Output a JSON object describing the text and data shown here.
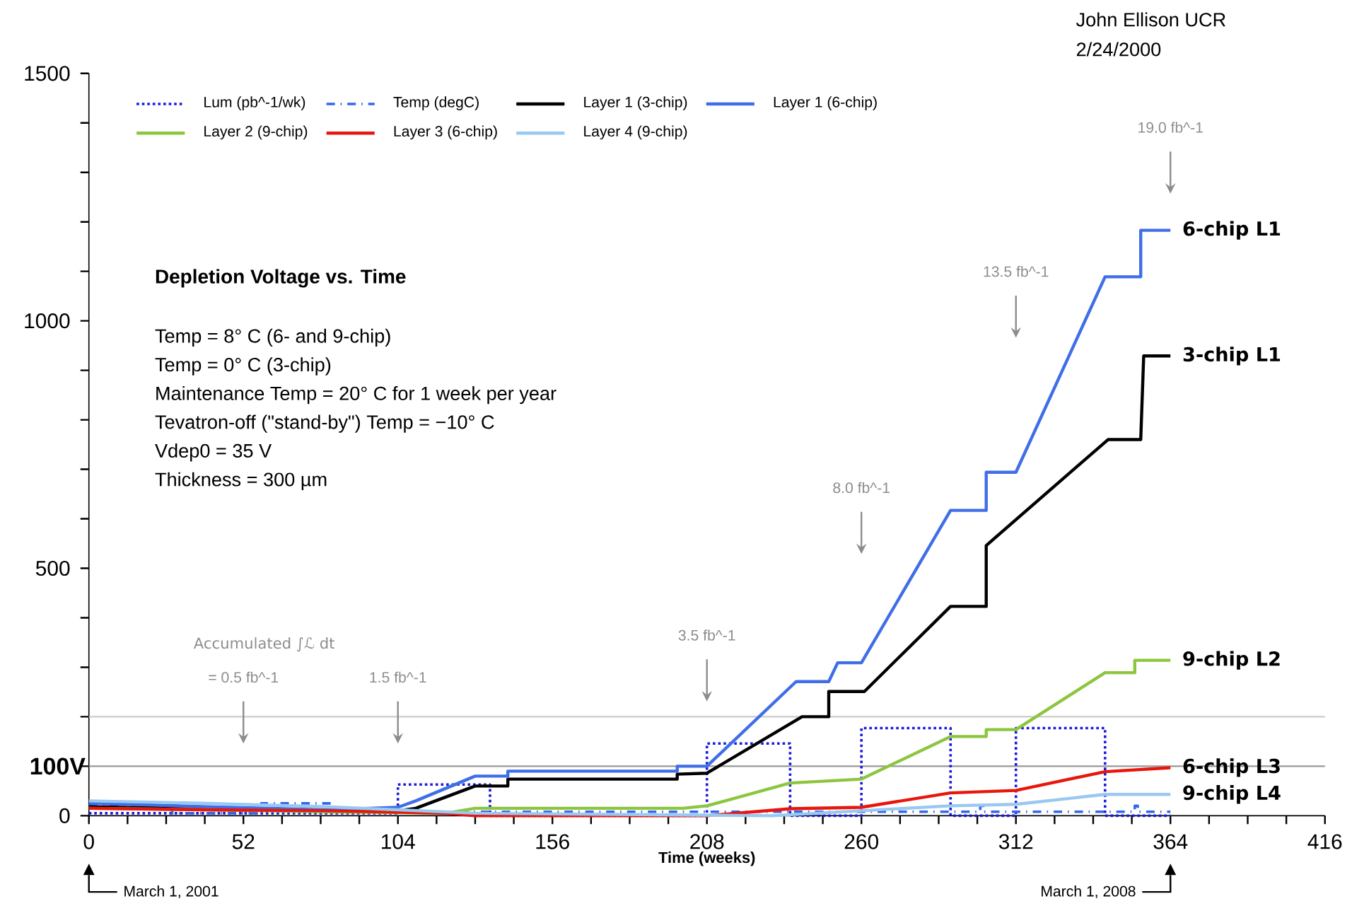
{
  "chart_data": {
    "type": "line",
    "title": "Depletion Voltage vs. Time",
    "xlabel": "Time (weeks)",
    "xlim": [
      0,
      416
    ],
    "xticks": [
      0,
      {
        "value": 13,
        "label": null
      },
      {
        "value": 26,
        "label": null
      },
      {
        "value": 39,
        "label": null
      },
      52,
      {
        "value": 65,
        "label": null
      },
      {
        "value": 78,
        "label": null
      },
      {
        "value": 91,
        "label": null
      },
      104,
      {
        "value": 117,
        "label": null
      },
      {
        "value": 130,
        "label": null
      },
      {
        "value": 143,
        "label": null
      },
      156,
      {
        "value": 169,
        "label": null
      },
      {
        "value": 182,
        "label": null
      },
      {
        "value": 195,
        "label": null
      },
      208,
      {
        "value": 221,
        "label": null
      },
      {
        "value": 234,
        "label": null
      },
      {
        "value": 247,
        "label": null
      },
      260,
      {
        "value": 273,
        "label": null
      },
      {
        "value": 286,
        "label": null
      },
      {
        "value": 299,
        "label": null
      },
      312,
      {
        "value": 325,
        "label": null
      },
      {
        "value": 338,
        "label": null
      },
      {
        "value": 351,
        "label": null
      },
      364,
      {
        "value": 377,
        "label": null
      },
      {
        "value": 390,
        "label": null
      },
      {
        "value": 403,
        "label": null
      },
      416
    ],
    "ylim": [
      0,
      1500
    ],
    "yticks": [
      0,
      {
        "value": 100,
        "label": null
      },
      {
        "value": 200,
        "label": null
      },
      {
        "value": 300,
        "label": null
      },
      {
        "value": 400,
        "label": null
      },
      500,
      {
        "value": 600,
        "label": null
      },
      {
        "value": 700,
        "label": null
      },
      {
        "value": 800,
        "label": null
      },
      {
        "value": 900,
        "label": null
      },
      1000,
      {
        "value": 1100,
        "label": null
      },
      {
        "value": 1200,
        "label": null
      },
      {
        "value": 1300,
        "label": null
      },
      {
        "value": 1400,
        "label": null
      },
      1500
    ],
    "legend": "top",
    "series": [
      {
        "name": "Lum (pb^-1/wk)",
        "color": "#1a1adb",
        "line_style": "dotted",
        "x": [
          0,
          104,
          104,
          135,
          135,
          208,
          208,
          236,
          236,
          260,
          260,
          290,
          290,
          312,
          312,
          342,
          342,
          364
        ],
        "values": [
          5,
          5,
          63,
          63,
          0,
          0,
          146,
          146,
          0,
          0,
          177,
          177,
          0,
          0,
          177,
          177,
          0,
          0
        ]
      },
      {
        "name": "Temp (degC)",
        "color": "#3366ee",
        "line_style": "dashdot",
        "x": [
          0,
          28,
          28,
          58,
          58,
          82,
          82,
          300,
          300,
          301,
          301,
          352,
          352,
          353,
          353,
          364
        ],
        "values": [
          20,
          20,
          5,
          5,
          25,
          25,
          8,
          8,
          20,
          20,
          8,
          8,
          20,
          20,
          8,
          8
        ]
      },
      {
        "name": "Layer 1 (3-chip)",
        "color": "#000000",
        "x": [
          0,
          30,
          60,
          104,
          110,
          130,
          141,
          141,
          198,
          198,
          208,
          240,
          249,
          249,
          261,
          290,
          302,
          302,
          343,
          354,
          355,
          364
        ],
        "values": [
          18,
          15,
          12,
          10,
          15,
          60,
          60,
          74,
          74,
          84,
          86,
          200,
          200,
          251,
          251,
          423,
          423,
          546,
          760,
          760,
          929,
          929
        ]
      },
      {
        "name": "Layer 1 (6-chip)",
        "color": "#3f6ee8",
        "x": [
          0,
          20,
          40,
          60,
          80,
          104,
          110,
          130,
          141,
          141,
          198,
          198,
          208,
          238,
          249,
          252,
          260,
          290,
          302,
          302,
          312,
          342,
          354,
          354,
          364
        ],
        "values": [
          25,
          22,
          18,
          15,
          12,
          17,
          30,
          80,
          80,
          90,
          90,
          100,
          100,
          271,
          271,
          309,
          309,
          617,
          617,
          694,
          694,
          1089,
          1089,
          1183,
          1183
        ]
      },
      {
        "name": "Layer 2 (9-chip)",
        "color": "#8cc63f",
        "x": [
          0,
          40,
          80,
          120,
          130,
          200,
          208,
          236,
          260,
          290,
          302,
          302,
          312,
          342,
          352,
          352,
          364
        ],
        "values": [
          15,
          12,
          8,
          5,
          15,
          15,
          20,
          66,
          74,
          160,
          160,
          174,
          174,
          289,
          289,
          314,
          314
        ]
      },
      {
        "name": "Layer 3 (6-chip)",
        "color": "#e8160c",
        "x": [
          0,
          40,
          80,
          120,
          130,
          208,
          236,
          260,
          290,
          312,
          342,
          364
        ],
        "values": [
          15,
          12,
          10,
          5,
          0,
          0,
          14,
          17,
          46,
          51,
          89,
          97
        ]
      },
      {
        "name": "Layer 4 (9-chip)",
        "color": "#99c8f0",
        "x": [
          0,
          40,
          80,
          104,
          130,
          230,
          290,
          312,
          342,
          364
        ],
        "values": [
          30,
          25,
          18,
          12,
          5,
          0,
          20,
          23,
          43,
          43
        ]
      }
    ],
    "ref_lines": [
      {
        "axis": "y",
        "value": 100,
        "label": "100V",
        "color": "#999999"
      },
      {
        "axis": "y",
        "value": 200,
        "color": "#cccccc"
      }
    ],
    "annotations": [
      "Temp = 8° C (6- and 9-chip)",
      "Temp = 0° C (3-chip)",
      "Maintenance Temp = 20° C for 1 week per year",
      "Tevatron-off (\"stand-by\") Temp = −10° C",
      "Vdep0 = 35 V",
      "Thickness = 300 µm",
      "Accumulated ∫ℒ dt",
      "John Ellison UCR",
      "2/24/2000",
      "= 0.5 fb^-1",
      "1.5 fb^-1",
      "3.5 fb^-1",
      "8.0 fb^-1",
      "13.5 fb^-1",
      "19.0 fb^-1",
      "6-chip L1",
      "3-chip L1",
      "9-chip L2",
      "6-chip L3",
      "9-chip L4",
      "March 1, 2001",
      "March 1, 2008"
    ]
  }
}
